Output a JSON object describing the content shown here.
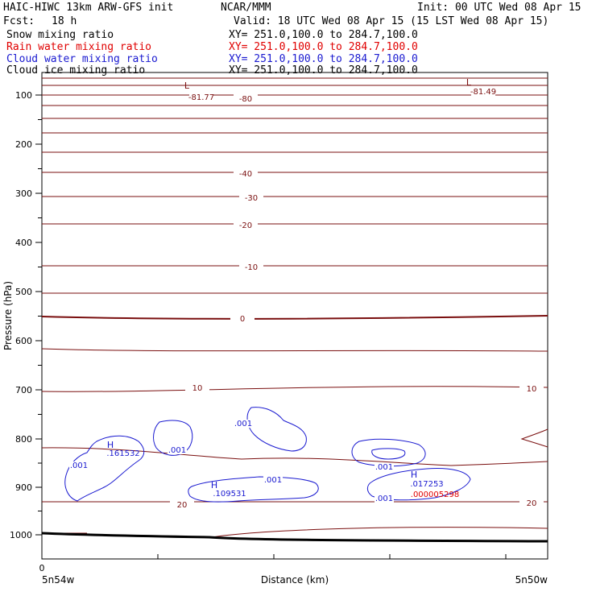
{
  "header": {
    "model": "HAIC-HIWC 13km ARW-GFS init",
    "center": "NCAR/MMM",
    "init": "Init: 00 UTC Wed 08 Apr 15",
    "fcst_label": "Fcst:",
    "fcst_value": "18 h",
    "valid": "Valid: 18 UTC Wed 08 Apr 15 (15 LST Wed 08 Apr 15)"
  },
  "fields": [
    {
      "name": "Snow mixing ratio",
      "xy": "XY= 251.0,100.0 to 284.7,100.0",
      "color": "#000000"
    },
    {
      "name": "Rain water mixing ratio",
      "xy": "XY= 251.0,100.0 to 284.7,100.0",
      "color": "#e00000"
    },
    {
      "name": "Cloud water mixing ratio",
      "xy": "XY= 251.0,100.0 to 284.7,100.0",
      "color": "#1a1ad0"
    },
    {
      "name": "Cloud ice mixing ratio",
      "xy": "XY= 251.0,100.0 to 284.7,100.0",
      "color": "#000000"
    }
  ],
  "chart_data": {
    "type": "cross-section",
    "ylabel": "Pressure (hPa)",
    "xlabel": "Distance (km)",
    "x_start_label": "5n54w",
    "x_end_label": "5n50w",
    "x_origin_tick": "0",
    "y_ticks": [
      100,
      200,
      300,
      400,
      500,
      600,
      700,
      800,
      900,
      1000
    ],
    "temp_color": "#7a0f0f",
    "cloud_color": "#1a1ad0",
    "rain_color": "#e00000",
    "temp_labels": [
      "-81.77",
      "-80",
      "-81.49",
      "-40",
      "-30",
      "-20",
      "-10",
      "0",
      "10",
      "10",
      "20",
      "20"
    ],
    "extrema": [
      {
        "tag": "L",
        "value": "-81.77"
      },
      {
        "tag": "L",
        "value": "-81.49"
      },
      {
        "tag": "H",
        "value": ".161532"
      },
      {
        "tag": "H",
        "value": ".109531"
      },
      {
        "tag": "H",
        "value": ".017253"
      }
    ],
    "cloud_labels": [
      ".001",
      ".001",
      ".001",
      ".001",
      ".001",
      ".001"
    ],
    "rain_label": ".000005298"
  }
}
